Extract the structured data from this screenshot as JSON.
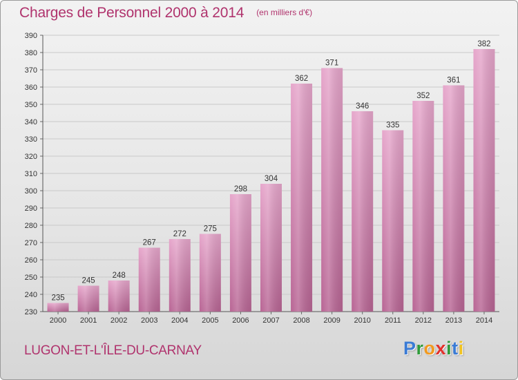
{
  "chart_data": {
    "type": "bar",
    "title": "Charges de Personnel 2000 à 2014",
    "subtitle": "(en milliers d'€)",
    "categories": [
      "2000",
      "2001",
      "2002",
      "2003",
      "2004",
      "2005",
      "2006",
      "2007",
      "2008",
      "2009",
      "2010",
      "2011",
      "2012",
      "2013",
      "2014"
    ],
    "values": [
      235,
      245,
      248,
      267,
      272,
      275,
      298,
      304,
      362,
      371,
      346,
      335,
      352,
      361,
      382
    ],
    "data_labels": [
      "235",
      "245",
      "248",
      "267",
      "272",
      "275",
      "298",
      "304",
      "362",
      "371",
      "346",
      "335",
      "352",
      "361",
      "382"
    ],
    "ylim": [
      230,
      390
    ],
    "yticks": [
      230,
      240,
      250,
      260,
      270,
      280,
      290,
      300,
      310,
      320,
      330,
      340,
      350,
      360,
      370,
      380,
      390
    ],
    "grid": true,
    "bar_color": "#d46ea6"
  },
  "footer": {
    "commune": "LUGON-ET-L'ÎLE-DU-CARNAY",
    "brand_letters": [
      {
        "ch": "P",
        "color": "#3a7bd5"
      },
      {
        "ch": "r",
        "color": "#2f9b3b"
      },
      {
        "ch": "o",
        "color": "#f19a1f"
      },
      {
        "ch": "x",
        "color": "#e3302b"
      },
      {
        "ch": "i",
        "color": "#2f9b3b"
      },
      {
        "ch": "t",
        "color": "#3a7bd5"
      },
      {
        "ch": "i",
        "color": "#f1c31f"
      }
    ]
  }
}
